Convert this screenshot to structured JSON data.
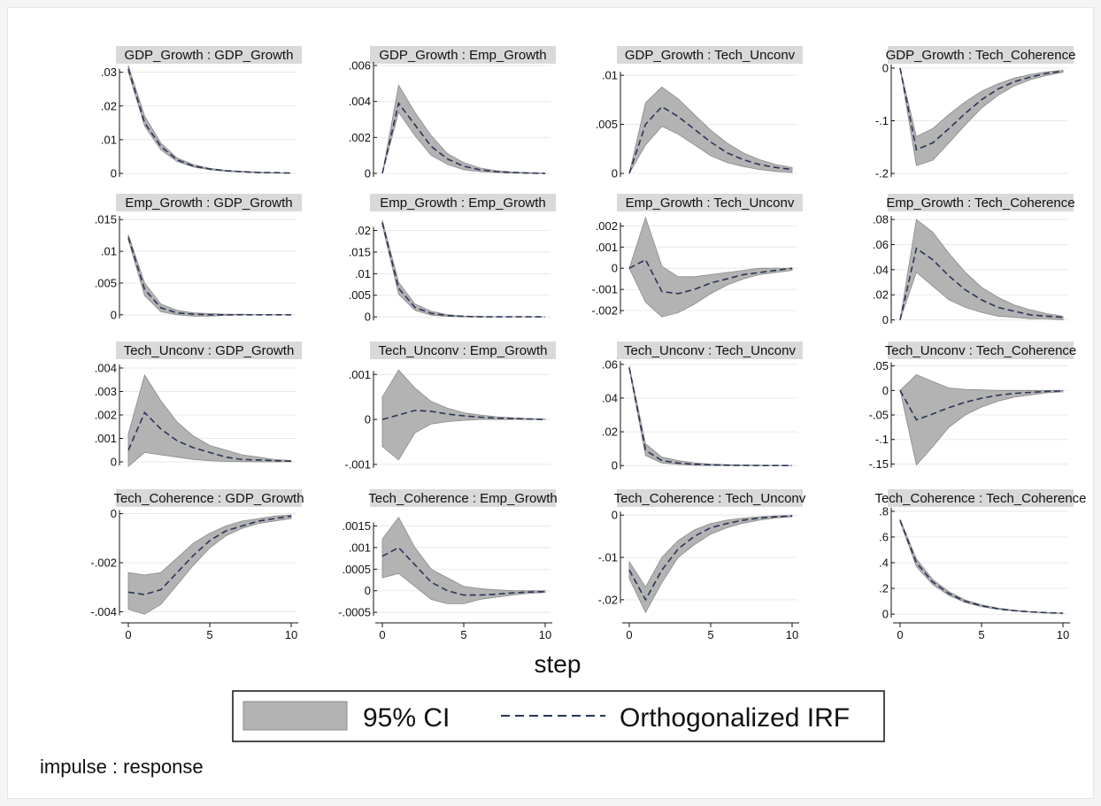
{
  "chart_data": {
    "type": "line",
    "xlabel": "step",
    "note": "impulse : response",
    "legend": {
      "ci_label": "95% CI",
      "line_label": "Orthogonalized IRF",
      "placement": "bottom-center"
    },
    "colors": {
      "ci_fill": "#b3b3b3",
      "irf_line": "#2a3558",
      "title_bg": "#d9d9d9"
    },
    "x_ticks": [
      "0",
      "5",
      "10"
    ],
    "grid": true,
    "panels": [
      {
        "title": "GDP_Growth : GDP_Growth",
        "ylim": [
          0,
          0.032
        ],
        "yticks": [
          {
            "v": 0,
            "label": "0"
          },
          {
            "v": 0.01,
            "label": ".01"
          },
          {
            "v": 0.02,
            "label": ".02"
          },
          {
            "v": 0.03,
            "label": ".03"
          }
        ],
        "irf": [
          0.031,
          0.015,
          0.008,
          0.004,
          0.0022,
          0.0013,
          0.0008,
          0.0005,
          0.0003,
          0.0002,
          0.0001
        ],
        "lower": [
          0.03,
          0.014,
          0.007,
          0.0035,
          0.0019,
          0.0011,
          0.0006,
          0.0004,
          0.0002,
          0.0001,
          0.0001
        ],
        "upper": [
          0.032,
          0.017,
          0.009,
          0.0046,
          0.0026,
          0.0015,
          0.0009,
          0.0006,
          0.0004,
          0.0002,
          0.0001
        ]
      },
      {
        "title": "GDP_Growth : Emp_Growth",
        "ylim": [
          0,
          0.006
        ],
        "yticks": [
          {
            "v": 0,
            "label": "0"
          },
          {
            "v": 0.002,
            "label": ".002"
          },
          {
            "v": 0.004,
            "label": ".004"
          },
          {
            "v": 0.006,
            "label": ".006"
          }
        ],
        "irf": [
          0,
          0.0039,
          0.0027,
          0.0015,
          0.0008,
          0.0004,
          0.0002,
          0.0001,
          5e-05,
          2e-05,
          0
        ],
        "lower": [
          0,
          0.0034,
          0.0021,
          0.001,
          0.0005,
          0.0002,
          0.0001,
          5e-05,
          2e-05,
          0,
          0
        ],
        "upper": [
          0,
          0.0049,
          0.0034,
          0.0021,
          0.0011,
          0.0006,
          0.0003,
          0.00015,
          8e-05,
          4e-05,
          2e-05
        ]
      },
      {
        "title": "GDP_Growth : Tech_Unconv",
        "ylim": [
          0,
          0.011
        ],
        "yticks": [
          {
            "v": 0,
            "label": "0"
          },
          {
            "v": 0.005,
            "label": ".005"
          },
          {
            "v": 0.01,
            "label": ".01"
          }
        ],
        "irf": [
          0,
          0.005,
          0.0068,
          0.0058,
          0.0045,
          0.0032,
          0.0021,
          0.0014,
          0.0009,
          0.0006,
          0.0004
        ],
        "lower": [
          0,
          0.0029,
          0.0048,
          0.004,
          0.0029,
          0.0018,
          0.0011,
          0.0007,
          0.0004,
          0.0002,
          0.0001
        ],
        "upper": [
          0,
          0.0072,
          0.0088,
          0.0076,
          0.006,
          0.0044,
          0.0031,
          0.0021,
          0.0014,
          0.0009,
          0.0006
        ]
      },
      {
        "title": "GDP_Growth : Tech_Coherence",
        "ylim": [
          -0.2,
          0.005
        ],
        "yticks": [
          {
            "v": -0.2,
            "label": "-.2"
          },
          {
            "v": -0.1,
            "label": "-.1"
          },
          {
            "v": 0,
            "label": "0"
          }
        ],
        "irf": [
          0,
          -0.155,
          -0.142,
          -0.115,
          -0.086,
          -0.06,
          -0.04,
          -0.026,
          -0.017,
          -0.01,
          -0.006
        ],
        "lower": [
          0,
          -0.185,
          -0.175,
          -0.142,
          -0.108,
          -0.076,
          -0.052,
          -0.034,
          -0.022,
          -0.014,
          -0.008
        ],
        "upper": [
          0,
          -0.13,
          -0.115,
          -0.088,
          -0.064,
          -0.044,
          -0.03,
          -0.019,
          -0.012,
          -0.007,
          -0.004
        ]
      },
      {
        "title": "Emp_Growth : GDP_Growth",
        "ylim": [
          -0.001,
          0.016
        ],
        "yticks": [
          {
            "v": 0,
            "label": "0"
          },
          {
            "v": 0.005,
            "label": ".005"
          },
          {
            "v": 0.01,
            "label": ".01"
          },
          {
            "v": 0.015,
            "label": ".015"
          }
        ],
        "irf": [
          0.0122,
          0.004,
          0.0011,
          0.0003,
          0.0001,
          0,
          0,
          0,
          0,
          0,
          0
        ],
        "lower": [
          0.0118,
          0.003,
          0.0005,
          0,
          -0.0002,
          -0.0002,
          -0.0001,
          0,
          0,
          0,
          0
        ],
        "upper": [
          0.0126,
          0.005,
          0.0017,
          0.0007,
          0.0003,
          0.0002,
          0.0001,
          0.0001,
          0,
          0,
          0
        ]
      },
      {
        "title": "Emp_Growth : Emp_Growth",
        "ylim": [
          -0.001,
          0.024
        ],
        "yticks": [
          {
            "v": 0,
            "label": "0"
          },
          {
            "v": 0.005,
            "label": ".005"
          },
          {
            "v": 0.01,
            "label": ".01"
          },
          {
            "v": 0.015,
            "label": ".015"
          },
          {
            "v": 0.02,
            "label": ".02"
          }
        ],
        "irf": [
          0.0218,
          0.0066,
          0.0022,
          0.0008,
          0.0003,
          0.0001,
          0,
          0,
          0,
          0,
          0
        ],
        "lower": [
          0.0212,
          0.0052,
          0.0015,
          0.0004,
          0.0001,
          0,
          0,
          0,
          0,
          0,
          0
        ],
        "upper": [
          0.0224,
          0.008,
          0.003,
          0.0013,
          0.0005,
          0.0002,
          0.0001,
          0,
          0,
          0,
          0
        ]
      },
      {
        "title": "Emp_Growth : Tech_Unconv",
        "ylim": [
          -0.0025,
          0.0026
        ],
        "yticks": [
          {
            "v": -0.002,
            "label": "-.002"
          },
          {
            "v": -0.001,
            "label": "-.001"
          },
          {
            "v": 0,
            "label": "0"
          },
          {
            "v": 0.001,
            "label": ".001"
          },
          {
            "v": 0.002,
            "label": ".002"
          }
        ],
        "irf": [
          0,
          0.0004,
          -0.0011,
          -0.0012,
          -0.001,
          -0.0007,
          -0.0005,
          -0.0003,
          -0.0002,
          -0.0001,
          0
        ],
        "lower": [
          0,
          -0.0016,
          -0.0023,
          -0.0021,
          -0.0017,
          -0.0012,
          -0.0008,
          -0.0005,
          -0.0003,
          -0.0002,
          -0.0001
        ],
        "upper": [
          0,
          0.0024,
          0.0001,
          -0.0004,
          -0.0004,
          -0.0003,
          -0.0002,
          -0.0001,
          0,
          0,
          0
        ]
      },
      {
        "title": "Emp_Growth : Tech_Coherence",
        "ylim": [
          -0.001,
          0.085
        ],
        "yticks": [
          {
            "v": 0,
            "label": "0"
          },
          {
            "v": 0.02,
            "label": ".02"
          },
          {
            "v": 0.04,
            "label": ".04"
          },
          {
            "v": 0.06,
            "label": ".06"
          },
          {
            "v": 0.08,
            "label": ".08"
          }
        ],
        "irf": [
          0,
          0.057,
          0.048,
          0.035,
          0.024,
          0.016,
          0.01,
          0.007,
          0.004,
          0.003,
          0.002
        ],
        "lower": [
          0,
          0.038,
          0.027,
          0.016,
          0.01,
          0.006,
          0.003,
          0.002,
          0.001,
          0.001,
          0
        ],
        "upper": [
          0,
          0.08,
          0.07,
          0.053,
          0.038,
          0.026,
          0.018,
          0.012,
          0.008,
          0.005,
          0.003
        ]
      },
      {
        "title": "Tech_Unconv : GDP_Growth",
        "ylim": [
          -0.0003,
          0.0043
        ],
        "yticks": [
          {
            "v": 0,
            "label": "0"
          },
          {
            "v": 0.001,
            "label": ".001"
          },
          {
            "v": 0.002,
            "label": ".002"
          },
          {
            "v": 0.003,
            "label": ".003"
          },
          {
            "v": 0.004,
            "label": ".004"
          }
        ],
        "irf": [
          0.0005,
          0.0021,
          0.0014,
          0.0009,
          0.0006,
          0.0004,
          0.0002,
          0.0001,
          8e-05,
          5e-05,
          3e-05
        ],
        "lower": [
          -0.0002,
          0.0004,
          0.0003,
          0.0002,
          0.0001,
          5e-05,
          2e-05,
          1e-05,
          0,
          0,
          0
        ],
        "upper": [
          0.0012,
          0.0037,
          0.0026,
          0.0017,
          0.0011,
          0.0007,
          0.0005,
          0.0003,
          0.0002,
          0.0001,
          6e-05
        ]
      },
      {
        "title": "Tech_Unconv : Emp_Growth",
        "ylim": [
          -0.0011,
          0.0013
        ],
        "yticks": [
          {
            "v": -0.001,
            "label": "-.001"
          },
          {
            "v": 0,
            "label": "0"
          },
          {
            "v": 0.001,
            "label": ".001"
          }
        ],
        "irf": [
          0,
          0.0001,
          0.0002,
          0.00018,
          0.00012,
          8e-05,
          5e-05,
          3e-05,
          2e-05,
          1e-05,
          0
        ],
        "lower": [
          -0.0006,
          -0.0009,
          -0.0003,
          -0.0001,
          -5e-05,
          -2e-05,
          0,
          0,
          0,
          0,
          0
        ],
        "upper": [
          0.0005,
          0.0011,
          0.0007,
          0.0004,
          0.00025,
          0.00015,
          0.0001,
          6e-05,
          4e-05,
          2e-05,
          1e-05
        ]
      },
      {
        "title": "Tech_Unconv : Tech_Unconv",
        "ylim": [
          -0.002,
          0.062
        ],
        "yticks": [
          {
            "v": 0,
            "label": "0"
          },
          {
            "v": 0.02,
            "label": ".02"
          },
          {
            "v": 0.04,
            "label": ".04"
          },
          {
            "v": 0.06,
            "label": ".06"
          }
        ],
        "irf": [
          0.058,
          0.009,
          0.003,
          0.0015,
          0.0008,
          0.0004,
          0.0002,
          0.0001,
          0,
          0,
          0
        ],
        "lower": [
          0.057,
          0.006,
          0.0015,
          0.0006,
          0.0002,
          0,
          0,
          0,
          0,
          0,
          0
        ],
        "upper": [
          0.059,
          0.013,
          0.005,
          0.003,
          0.0016,
          0.0009,
          0.0005,
          0.0003,
          0.0002,
          0.0001,
          0
        ]
      },
      {
        "title": "Tech_Unconv : Tech_Coherence",
        "ylim": [
          -0.16,
          0.06
        ],
        "yticks": [
          {
            "v": -0.15,
            "label": "-.15"
          },
          {
            "v": -0.1,
            "label": "-.1"
          },
          {
            "v": -0.05,
            "label": "-.05"
          },
          {
            "v": 0,
            "label": "0"
          },
          {
            "v": 0.05,
            "label": ".05"
          }
        ],
        "irf": [
          0,
          -0.06,
          -0.048,
          -0.035,
          -0.024,
          -0.016,
          -0.01,
          -0.006,
          -0.004,
          -0.002,
          -0.001
        ],
        "lower": [
          0,
          -0.152,
          -0.115,
          -0.075,
          -0.05,
          -0.034,
          -0.022,
          -0.014,
          -0.009,
          -0.005,
          -0.003
        ],
        "upper": [
          0,
          0.032,
          0.018,
          0.005,
          0.002,
          0.001,
          0,
          0,
          0,
          0,
          0
        ]
      },
      {
        "title": "Tech_Coherence : GDP_Growth",
        "ylim": [
          -0.0042,
          0.0002
        ],
        "yticks": [
          {
            "v": -0.004,
            "label": "-.004"
          },
          {
            "v": -0.002,
            "label": "-.002"
          },
          {
            "v": 0,
            "label": "0"
          }
        ],
        "irf": [
          -0.0032,
          -0.0033,
          -0.0031,
          -0.0024,
          -0.0017,
          -0.0011,
          -0.0007,
          -0.0005,
          -0.0003,
          -0.0002,
          -0.0001
        ],
        "lower": [
          -0.0039,
          -0.0041,
          -0.0037,
          -0.0029,
          -0.0021,
          -0.0014,
          -0.0009,
          -0.0006,
          -0.0004,
          -0.0003,
          -0.0002
        ],
        "upper": [
          -0.0024,
          -0.0025,
          -0.0024,
          -0.0018,
          -0.0012,
          -0.0008,
          -0.0005,
          -0.0003,
          -0.0002,
          -0.0001,
          -5e-05
        ]
      },
      {
        "title": "Tech_Coherence : Emp_Growth",
        "ylim": [
          -0.0006,
          0.0019
        ],
        "yticks": [
          {
            "v": -0.0005,
            "label": "-.0005"
          },
          {
            "v": 0,
            "label": "0"
          },
          {
            "v": 0.0005,
            "label": ".0005"
          },
          {
            "v": 0.001,
            "label": ".001"
          },
          {
            "v": 0.0015,
            "label": ".0015"
          }
        ],
        "irf": [
          0.0008,
          0.001,
          0.0006,
          0.0002,
          0,
          -0.0001,
          -0.0001,
          -8e-05,
          -5e-05,
          -3e-05,
          -2e-05
        ],
        "lower": [
          0.0003,
          0.0004,
          0.0001,
          -0.0002,
          -0.0003,
          -0.0003,
          -0.0002,
          -0.00015,
          -0.0001,
          -6e-05,
          -4e-05
        ],
        "upper": [
          0.0012,
          0.0017,
          0.001,
          0.0005,
          0.0003,
          0.0001,
          5e-05,
          2e-05,
          0,
          0,
          0
        ]
      },
      {
        "title": "Tech_Coherence : Tech_Unconv",
        "ylim": [
          -0.024,
          0.0015
        ],
        "yticks": [
          {
            "v": -0.02,
            "label": "-.02"
          },
          {
            "v": -0.01,
            "label": "-.01"
          },
          {
            "v": 0,
            "label": "0"
          }
        ],
        "irf": [
          -0.013,
          -0.02,
          -0.013,
          -0.008,
          -0.005,
          -0.003,
          -0.002,
          -0.0012,
          -0.0007,
          -0.0004,
          -0.0002
        ],
        "lower": [
          -0.015,
          -0.023,
          -0.016,
          -0.01,
          -0.007,
          -0.0045,
          -0.003,
          -0.0019,
          -0.0012,
          -0.0007,
          -0.0004
        ],
        "upper": [
          -0.011,
          -0.017,
          -0.01,
          -0.006,
          -0.0035,
          -0.002,
          -0.0012,
          -0.0007,
          -0.0004,
          -0.0002,
          -0.0001
        ]
      },
      {
        "title": "Tech_Coherence : Tech_Coherence",
        "ylim": [
          -0.02,
          0.82
        ],
        "yticks": [
          {
            "v": 0,
            "label": "0"
          },
          {
            "v": 0.2,
            "label": ".2"
          },
          {
            "v": 0.4,
            "label": ".4"
          },
          {
            "v": 0.6,
            "label": ".6"
          },
          {
            "v": 0.8,
            "label": ".8"
          }
        ],
        "irf": [
          0.73,
          0.4,
          0.25,
          0.16,
          0.1,
          0.065,
          0.042,
          0.027,
          0.017,
          0.011,
          0.007
        ],
        "lower": [
          0.72,
          0.37,
          0.23,
          0.145,
          0.09,
          0.058,
          0.037,
          0.024,
          0.015,
          0.009,
          0.006
        ],
        "upper": [
          0.74,
          0.43,
          0.27,
          0.175,
          0.11,
          0.072,
          0.047,
          0.03,
          0.019,
          0.012,
          0.008
        ]
      }
    ]
  }
}
